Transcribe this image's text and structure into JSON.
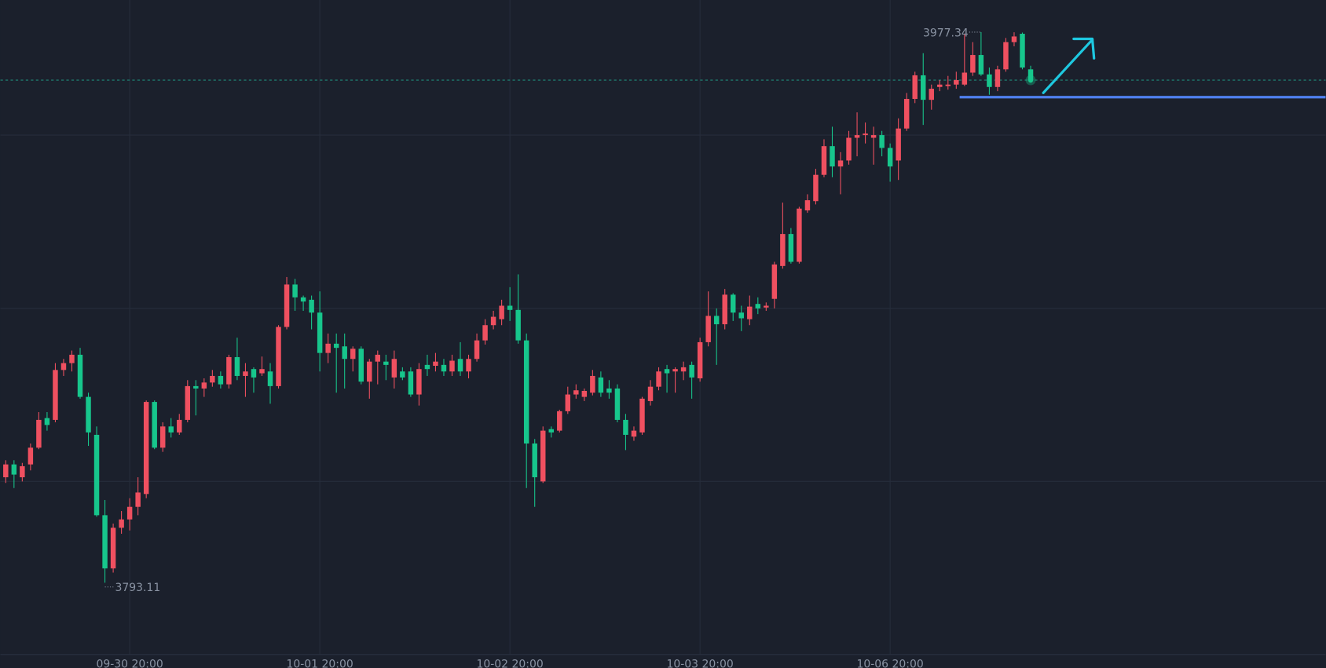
{
  "chart_data": {
    "type": "candlestick",
    "categories": [
      null,
      null,
      null,
      null,
      null,
      null,
      null,
      null,
      null,
      null,
      null,
      null,
      null,
      null,
      null,
      "09-30 20:00",
      null,
      null,
      null,
      null,
      null,
      null,
      null,
      null,
      null,
      null,
      null,
      null,
      null,
      null,
      null,
      null,
      null,
      null,
      null,
      null,
      null,
      null,
      "10-01 20:00",
      null,
      null,
      null,
      null,
      null,
      null,
      null,
      null,
      null,
      null,
      null,
      null,
      null,
      null,
      null,
      null,
      null,
      null,
      null,
      null,
      null,
      null,
      "10-02 20:00",
      null,
      null,
      null,
      null,
      null,
      null,
      null,
      null,
      null,
      null,
      null,
      null,
      null,
      null,
      null,
      null,
      null,
      null,
      null,
      null,
      null,
      null,
      "10-03 20:00",
      null,
      null,
      null,
      null,
      null,
      null,
      null,
      null,
      null,
      null,
      null,
      null,
      null,
      null,
      null,
      null,
      null,
      null,
      null,
      null,
      null,
      null,
      "10-06 20:00",
      null,
      null,
      null,
      null,
      null,
      null,
      null,
      null,
      null,
      null,
      null,
      null,
      null,
      null,
      null,
      null,
      null
    ],
    "open": [
      3828.4,
      3832.7,
      3828.4,
      3832.7,
      3838.3,
      3848.2,
      3847.6,
      3864.3,
      3866.6,
      3869.4,
      3855.3,
      3842.6,
      3815.7,
      3797.9,
      3811.5,
      3814.3,
      3818.5,
      3822.8,
      3853.6,
      3838.3,
      3845.4,
      3843.4,
      3847.6,
      3858.9,
      3858.1,
      3860.1,
      3862.3,
      3859.5,
      3868.6,
      3862.3,
      3864.6,
      3863.2,
      3863.8,
      3858.9,
      3878.7,
      3892.9,
      3888.6,
      3887.8,
      3883.5,
      3870.0,
      3873.1,
      3872.2,
      3868.0,
      3871.4,
      3860.4,
      3867.1,
      3867.1,
      3861.8,
      3863.8,
      3863.8,
      3856.1,
      3866.0,
      3865.7,
      3866.0,
      3863.8,
      3868.0,
      3863.8,
      3868.0,
      3874.2,
      3879.3,
      3881.3,
      3885.8,
      3884.4,
      3874.2,
      3839.7,
      3827.0,
      3844.5,
      3844.0,
      3850.5,
      3856.1,
      3855.3,
      3856.7,
      3861.8,
      3858.1,
      3858.1,
      3847.6,
      3842.0,
      3843.4,
      3853.9,
      3858.7,
      3864.6,
      3863.8,
      3863.8,
      3866.0,
      3861.5,
      3873.6,
      3882.4,
      3879.6,
      3889.5,
      3883.5,
      3881.3,
      3886.4,
      3885.2,
      3888.1,
      3899.1,
      3909.8,
      3900.5,
      3917.7,
      3920.8,
      3929.6,
      3939.2,
      3932.4,
      3934.4,
      3942.0,
      3942.9,
      3942.0,
      3942.9,
      3938.6,
      3934.4,
      3945.1,
      3955.0,
      3962.9,
      3954.7,
      3959.0,
      3959.3,
      3959.8,
      3959.8,
      3963.8,
      3969.7,
      3963.2,
      3959.0,
      3964.9,
      3974.0,
      3976.8,
      3964.9
    ],
    "high": [
      3834.1,
      3834.1,
      3833.2,
      3839.7,
      3850.2,
      3850.2,
      3866.6,
      3868.0,
      3870.8,
      3871.7,
      3856.7,
      3845.4,
      3820.8,
      3812.9,
      3817.1,
      3821.4,
      3828.4,
      3854.1,
      3854.1,
      3846.8,
      3848.2,
      3849.6,
      3860.9,
      3860.9,
      3861.5,
      3864.3,
      3863.8,
      3869.4,
      3875.1,
      3866.6,
      3865.2,
      3868.8,
      3866.6,
      3879.3,
      3895.4,
      3894.8,
      3889.2,
      3889.2,
      3890.6,
      3876.5,
      3876.5,
      3876.5,
      3872.2,
      3872.2,
      3868.0,
      3870.8,
      3869.4,
      3870.8,
      3865.2,
      3865.2,
      3866.6,
      3869.4,
      3870.0,
      3868.0,
      3869.4,
      3873.6,
      3869.4,
      3876.5,
      3881.3,
      3884.1,
      3887.8,
      3892.0,
      3896.3,
      3876.5,
      3841.2,
      3845.4,
      3845.4,
      3851.0,
      3858.7,
      3859.5,
      3858.1,
      3864.3,
      3863.8,
      3860.9,
      3859.5,
      3849.6,
      3845.4,
      3855.3,
      3860.9,
      3865.2,
      3866.0,
      3865.2,
      3867.1,
      3867.1,
      3875.1,
      3890.6,
      3884.9,
      3891.4,
      3890.0,
      3885.8,
      3889.2,
      3888.6,
      3886.9,
      3900.5,
      3920.3,
      3911.8,
      3918.9,
      3923.1,
      3931.6,
      3941.5,
      3945.7,
      3937.2,
      3944.3,
      3950.5,
      3947.1,
      3945.7,
      3944.3,
      3940.1,
      3948.5,
      3957.0,
      3964.1,
      3970.3,
      3959.8,
      3961.3,
      3962.7,
      3964.1,
      3976.8,
      3974.0,
      3977.34,
      3965.5,
      3966.1,
      3975.4,
      3977.3,
      3977.2,
      3966.1
    ],
    "low": [
      3826.5,
      3824.8,
      3827.0,
      3830.7,
      3837.8,
      3844.0,
      3846.8,
      3862.3,
      3863.8,
      3854.7,
      3838.9,
      3815.2,
      3793.11,
      3796.5,
      3809.5,
      3810.6,
      3815.7,
      3821.4,
      3837.8,
      3836.9,
      3841.7,
      3842.6,
      3846.8,
      3849.1,
      3855.3,
      3858.7,
      3858.1,
      3858.1,
      3860.9,
      3855.3,
      3856.7,
      3862.3,
      3853.0,
      3858.1,
      3877.9,
      3884.1,
      3884.1,
      3877.9,
      3863.8,
      3866.6,
      3856.7,
      3858.1,
      3863.8,
      3859.5,
      3854.7,
      3859.5,
      3860.9,
      3858.1,
      3860.9,
      3855.3,
      3852.4,
      3862.3,
      3863.8,
      3862.3,
      3862.3,
      3862.3,
      3861.5,
      3867.1,
      3872.8,
      3877.9,
      3879.3,
      3880.7,
      3873.1,
      3824.8,
      3818.5,
      3826.5,
      3841.7,
      3843.4,
      3849.6,
      3854.7,
      3853.9,
      3855.8,
      3855.3,
      3854.7,
      3846.8,
      3837.5,
      3840.6,
      3842.6,
      3852.4,
      3857.5,
      3856.7,
      3856.7,
      3860.9,
      3854.7,
      3860.4,
      3872.2,
      3866.0,
      3877.9,
      3880.7,
      3877.3,
      3879.3,
      3883.0,
      3884.1,
      3884.9,
      3898.2,
      3899.9,
      3899.9,
      3916.9,
      3919.7,
      3928.8,
      3928.8,
      3923.1,
      3933.0,
      3935.8,
      3940.1,
      3933.0,
      3935.8,
      3927.3,
      3927.9,
      3944.3,
      3953.6,
      3946.3,
      3951.4,
      3957.6,
      3958.1,
      3958.4,
      3959.3,
      3962.7,
      3962.7,
      3956.4,
      3957.6,
      3964.1,
      3972.6,
      3964.9,
      3960.4
    ],
    "close": [
      3832.7,
      3829.3,
      3832.1,
      3838.3,
      3847.6,
      3845.9,
      3864.3,
      3866.6,
      3869.4,
      3855.3,
      3843.4,
      3815.7,
      3797.9,
      3811.5,
      3814.3,
      3818.5,
      3823.3,
      3853.6,
      3838.3,
      3845.4,
      3843.4,
      3847.6,
      3858.9,
      3858.1,
      3860.1,
      3862.3,
      3859.5,
      3868.6,
      3862.3,
      3863.8,
      3861.8,
      3864.6,
      3858.9,
      3878.7,
      3892.9,
      3888.6,
      3887.2,
      3883.5,
      3870.0,
      3873.1,
      3871.7,
      3868.0,
      3871.4,
      3860.4,
      3867.1,
      3869.4,
      3866.0,
      3868.0,
      3861.8,
      3856.1,
      3864.6,
      3864.6,
      3867.1,
      3863.8,
      3867.4,
      3863.8,
      3868.0,
      3874.2,
      3879.3,
      3882.1,
      3885.8,
      3884.4,
      3874.2,
      3839.7,
      3828.4,
      3844.0,
      3843.4,
      3850.5,
      3856.1,
      3857.5,
      3857.3,
      3862.3,
      3856.7,
      3856.7,
      3847.6,
      3842.6,
      3844.0,
      3854.7,
      3858.7,
      3863.8,
      3863.2,
      3864.6,
      3865.2,
      3861.8,
      3873.6,
      3882.4,
      3879.6,
      3889.5,
      3883.5,
      3881.6,
      3885.5,
      3884.9,
      3885.8,
      3899.6,
      3909.8,
      3900.5,
      3918.3,
      3921.1,
      3929.6,
      3939.2,
      3932.4,
      3934.4,
      3942.0,
      3942.9,
      3943.4,
      3942.9,
      3938.6,
      3932.4,
      3945.1,
      3955.0,
      3962.9,
      3954.7,
      3958.4,
      3959.8,
      3959.8,
      3961.3,
      3963.8,
      3969.7,
      3963.2,
      3959.0,
      3964.9,
      3974.0,
      3975.9,
      3965.5,
      3961.3
    ],
    "up_color": "#ef5060",
    "down_color": "#17c68c",
    "ylim": [
      3769.1,
      3988.1
    ],
    "yticks": [
      3827,
      3884.9,
      3942.9
    ],
    "grid": true,
    "horizontal_line": {
      "value": 3955.6,
      "color": "#4f7fef"
    }
  }
}
